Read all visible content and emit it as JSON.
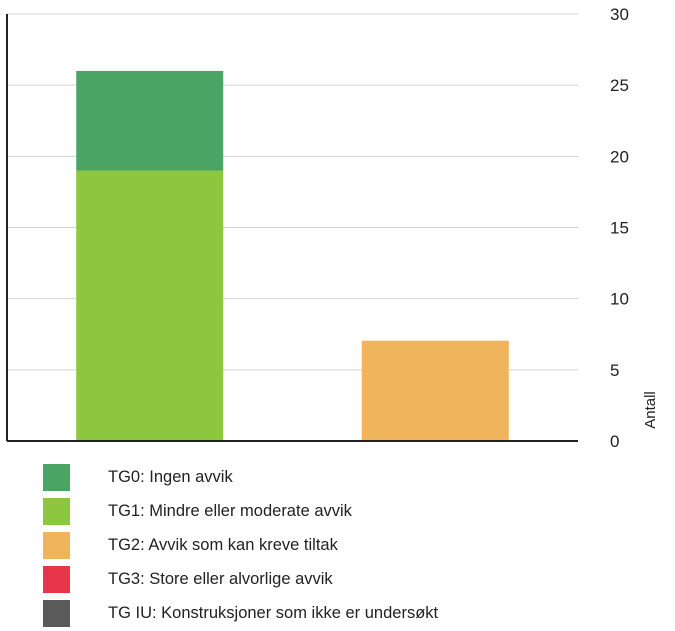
{
  "chart_data": {
    "type": "bar",
    "stacked": true,
    "categories": [
      "",
      ""
    ],
    "series": [
      {
        "name": "TG0: Ingen avvik",
        "color": "#4aa564",
        "values": [
          7,
          0
        ]
      },
      {
        "name": "TG1: Mindre eller moderate avvik",
        "color": "#8dc63f",
        "values": [
          19,
          0.05
        ]
      },
      {
        "name": "TG2: Avvik som kan kreve tiltak",
        "color": "#f0b45c",
        "values": [
          0,
          7
        ]
      },
      {
        "name": "TG3: Store eller alvorlige avvik",
        "color": "#e8354a",
        "values": [
          0,
          0
        ]
      },
      {
        "name": "TG IU: Konstruksjoner som ikke er undersøkt",
        "color": "#5a5a5a",
        "values": [
          0,
          0
        ]
      }
    ],
    "ylabel": "Antall",
    "ylim": [
      0,
      30
    ],
    "yticks": [
      0,
      5,
      10,
      15,
      20,
      25,
      30
    ],
    "y_axis_side": "right",
    "grid": true,
    "legend_position": "bottom-left"
  }
}
